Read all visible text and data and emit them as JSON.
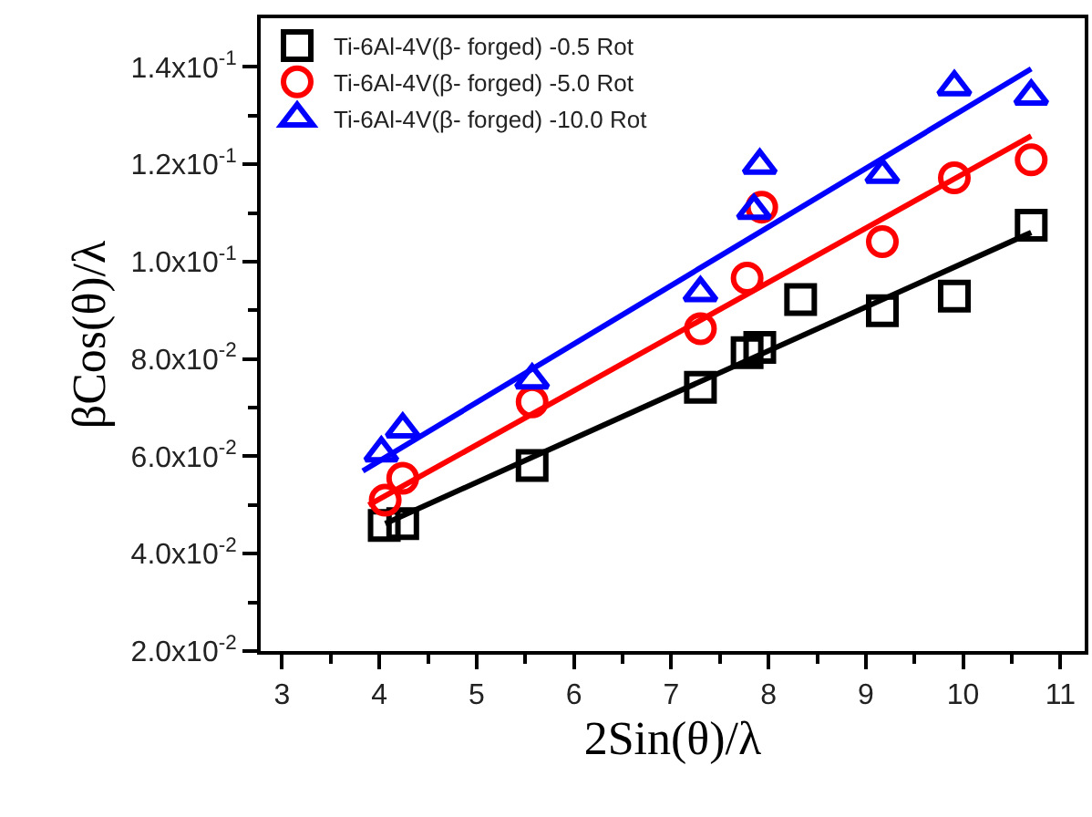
{
  "chart_data": {
    "type": "scatter",
    "xlabel": "2Sin(θ)/λ",
    "ylabel": "βCos(θ)/λ",
    "xlim": [
      2.78,
      11.25
    ],
    "ylim": [
      0.02,
      0.15
    ],
    "xticks": [
      3,
      {
        "value": 3.5,
        "label": null
      },
      4,
      {
        "value": 4.5,
        "label": null
      },
      5,
      {
        "value": 5.5,
        "label": null
      },
      6,
      {
        "value": 6.5,
        "label": null
      },
      7,
      {
        "value": 7.5,
        "label": null
      },
      8,
      {
        "value": 8.5,
        "label": null
      },
      9,
      {
        "value": 9.5,
        "label": null
      },
      10,
      {
        "value": 10.5,
        "label": null
      },
      11
    ],
    "yticks": [
      {
        "value": 0.02,
        "label": "2.0x10$^{-2}$"
      },
      {
        "value": 0.03,
        "label": null
      },
      {
        "value": 0.04,
        "label": "4.0x10$^{-2}$"
      },
      {
        "value": 0.05,
        "label": null
      },
      {
        "value": 0.06,
        "label": "6.0x10$^{-2}$"
      },
      {
        "value": 0.07,
        "label": null
      },
      {
        "value": 0.08,
        "label": "8.0x10$^{-2}$"
      },
      {
        "value": 0.09,
        "label": null
      },
      {
        "value": 0.1,
        "label": "1.0x10$^{-1}$"
      },
      {
        "value": 0.11,
        "label": null
      },
      {
        "value": 0.12,
        "label": "1.2x10$^{-1}$"
      },
      {
        "value": 0.13,
        "label": null
      },
      {
        "value": 0.14,
        "label": "1.4x10$^{-1}$"
      }
    ],
    "grid": false,
    "legend": "top left",
    "series": [
      {
        "name": "Ti-6Al-4V(β- forged) -0.5 Rot",
        "color": "#000000",
        "marker": "square",
        "x": [
          4.05,
          4.24,
          5.57,
          7.3,
          7.78,
          7.91,
          8.33,
          9.17,
          9.91,
          10.7
        ],
        "values": [
          0.0458,
          0.0462,
          0.0581,
          0.0742,
          0.0813,
          0.0824,
          0.0922,
          0.0899,
          0.0929,
          0.1075
        ]
      },
      {
        "name": "Ti-6Al-4V(β- forged) -5.0 Rot",
        "color": "#ff0000",
        "marker": "circle",
        "x": [
          4.06,
          4.24,
          5.57,
          7.3,
          7.78,
          7.93,
          9.17,
          9.91,
          10.7
        ],
        "values": [
          0.051,
          0.0555,
          0.0712,
          0.0862,
          0.0966,
          0.1112,
          0.1041,
          0.1172,
          0.1209
        ]
      },
      {
        "name": "Ti-6Al-4V(β- forged) -10.0 Rot",
        "color": "#0000ff",
        "marker": "triangle",
        "x": [
          4.02,
          4.24,
          5.57,
          7.3,
          7.85,
          7.91,
          9.17,
          9.91,
          10.7
        ],
        "values": [
          0.0607,
          0.0656,
          0.0757,
          0.0936,
          0.1105,
          0.1198,
          0.1179,
          0.1359,
          0.134
        ]
      },
      {
        "type": "line",
        "color": "#000000",
        "x": [
          4.06,
          10.7
        ],
        "values": [
          0.0462,
          0.106
        ]
      },
      {
        "type": "line",
        "color": "#ff0000",
        "x": [
          3.89,
          10.7
        ],
        "values": [
          0.05,
          0.1258
        ]
      },
      {
        "type": "line",
        "color": "#0000ff",
        "x": [
          3.83,
          10.7
        ],
        "values": [
          0.057,
          0.1396
        ]
      }
    ]
  }
}
